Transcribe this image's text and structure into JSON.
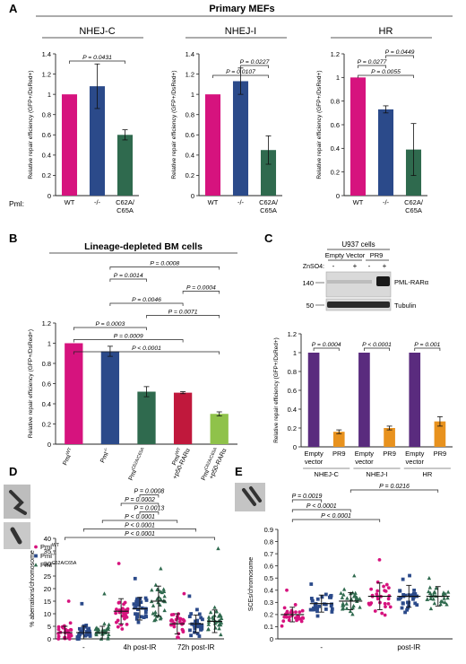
{
  "colors": {
    "magenta": "#d6137e",
    "navy": "#2b4a8a",
    "green": "#2f6a4e",
    "crimson": "#c0183c",
    "lightgreen": "#8fc24a",
    "purple": "#5a2b7e",
    "orange": "#e8921e",
    "axis": "#222222"
  },
  "panel_a": {
    "letter": "A",
    "title": "Primary MEFs",
    "pml_label": "Pml:",
    "ylabel": "Relative repair efficiency (GFP+/DsRed+)"
  },
  "panel_b": {
    "letter": "B",
    "title": "Lineage-depleted BM cells",
    "ylabel": "Relative repair efficiency (GFP+/DsRed+)"
  },
  "panel_c": {
    "letter": "C",
    "blot_title": "U937 cells",
    "group_empty": "Empty Vector",
    "group_pr9": "PR9",
    "znso4_label": "ZnSO4:",
    "lane_signs": [
      "-",
      "+",
      "-",
      "+"
    ],
    "mw_markers": [
      "140",
      "50"
    ],
    "band_pml": "PML-RARα",
    "band_tubulin": "Tubulin",
    "ylabel": "Relative repair efficiency (GFP+/DsRed+)"
  },
  "panel_d": {
    "letter": "D",
    "ylabel": "% aberrations/chromosome"
  },
  "panel_e": {
    "letter": "E",
    "ylabel": "SCEs/chromosome"
  },
  "chart_data": [
    {
      "id": "A1",
      "type": "bar",
      "subtitle": "NHEJ-C",
      "categories": [
        "WT",
        "-/-",
        "C62A/\nC65A"
      ],
      "values": [
        1.0,
        1.08,
        0.6
      ],
      "errors": [
        0,
        0.22,
        0.05
      ],
      "colors": [
        "magenta",
        "navy",
        "green"
      ],
      "ylim": [
        0,
        1.4
      ],
      "yticks": [
        "0",
        "0.2",
        "0.4",
        "0.6",
        "0.8",
        "1",
        "1.2",
        "1.4"
      ],
      "brackets": [
        {
          "from": 0,
          "to": 2,
          "label": "P = 0.0431"
        }
      ]
    },
    {
      "id": "A2",
      "type": "bar",
      "subtitle": "NHEJ-I",
      "categories": [
        "WT",
        "-/-",
        "C62A/\nC65A"
      ],
      "values": [
        1.0,
        1.13,
        0.45
      ],
      "errors": [
        0,
        0.13,
        0.14
      ],
      "colors": [
        "magenta",
        "navy",
        "green"
      ],
      "ylim": [
        0,
        1.4
      ],
      "yticks": [
        "0",
        "0.2",
        "0.4",
        "0.6",
        "0.8",
        "1",
        "1.2",
        "1.4"
      ],
      "brackets": [
        {
          "from": 0,
          "to": 2,
          "label": "P = 0.0107"
        },
        {
          "from": 1,
          "to": 2,
          "label": "P = 0.0227"
        }
      ]
    },
    {
      "id": "A3",
      "type": "bar",
      "subtitle": "HR",
      "categories": [
        "WT",
        "-/-",
        "C62A/\nC65A"
      ],
      "values": [
        1.0,
        0.73,
        0.39
      ],
      "errors": [
        0,
        0.03,
        0.22
      ],
      "colors": [
        "magenta",
        "navy",
        "green"
      ],
      "ylim": [
        0,
        1.2
      ],
      "yticks": [
        "0",
        "0.2",
        "0.4",
        "0.6",
        "0.8",
        "1",
        "1.2"
      ],
      "brackets": [
        {
          "from": 0,
          "to": 2,
          "label": "P = 0.0055"
        },
        {
          "from": 0,
          "to": 1,
          "label": "P = 0.0277"
        },
        {
          "from": 1,
          "to": 2,
          "label": "P = 0.0449"
        }
      ]
    },
    {
      "id": "B",
      "type": "bar",
      "categories": [
        "PmlWT",
        "Pml-/-",
        "PmlC62A/C65A",
        "PmlWT\n+p50-RARα",
        "PmlC62A/C65A\n+p50-RARα"
      ],
      "values": [
        1.0,
        0.92,
        0.52,
        0.51,
        0.3
      ],
      "errors": [
        0,
        0.05,
        0.05,
        0.01,
        0.02
      ],
      "colors": [
        "magenta",
        "navy",
        "green",
        "crimson",
        "lightgreen"
      ],
      "ylim": [
        0,
        1.2
      ],
      "yticks": [
        "0",
        "0.2",
        "0.4",
        "0.6",
        "0.8",
        "1",
        "1.2"
      ],
      "brackets": [
        {
          "from": 0,
          "to": 4,
          "label": "P < 0.0001"
        },
        {
          "from": 0,
          "to": 3,
          "label": "P = 0.0009"
        },
        {
          "from": 0,
          "to": 2,
          "label": "P = 0.0003"
        },
        {
          "from": 2,
          "to": 4,
          "label": "P = 0.0071"
        },
        {
          "from": 1,
          "to": 3,
          "label": "P = 0.0046"
        },
        {
          "from": 3,
          "to": 4,
          "label": "P = 0.0004"
        },
        {
          "from": 1,
          "to": 2,
          "label": "P = 0.0014"
        },
        {
          "from": 1,
          "to": 4,
          "label": "P = 0.0008"
        }
      ]
    },
    {
      "id": "C",
      "type": "bar",
      "categories": [
        "Empty\nvector",
        "PR9",
        "Empty\nvector",
        "PR9",
        "Empty\nvector",
        "PR9"
      ],
      "groups": [
        "NHEJ-C",
        "NHEJ-I",
        "HR"
      ],
      "values": [
        1.0,
        0.16,
        1.0,
        0.2,
        1.0,
        0.27
      ],
      "errors": [
        0,
        0.02,
        0,
        0.02,
        0,
        0.05
      ],
      "colors": [
        "purple",
        "orange",
        "purple",
        "orange",
        "purple",
        "orange"
      ],
      "ylim": [
        0,
        1.2
      ],
      "yticks": [
        "0",
        "0.2",
        "0.4",
        "0.6",
        "0.8",
        "1",
        "1.2"
      ],
      "brackets": [
        {
          "from": 0,
          "to": 1,
          "label": "P = 0.0004"
        },
        {
          "from": 2,
          "to": 3,
          "label": "P < 0.0001"
        },
        {
          "from": 4,
          "to": 5,
          "label": "P = 0.001"
        }
      ]
    },
    {
      "id": "D",
      "type": "scatter",
      "groups": [
        "-",
        "4h post-IR",
        "72h post-IR"
      ],
      "series": [
        {
          "name": "PmlWT",
          "color": "magenta",
          "marker": "circle",
          "mean": [
            2.5,
            11,
            6
          ],
          "sd": [
            2.5,
            5,
            4
          ],
          "max": [
            15,
            30,
            18
          ]
        },
        {
          "name": "Pml-/-",
          "color": "navy",
          "marker": "square",
          "mean": [
            2.5,
            12,
            6
          ],
          "sd": [
            2.5,
            4.5,
            3.5
          ],
          "max": [
            14,
            24,
            17
          ]
        },
        {
          "name": "PmlC62A/C65A",
          "color": "green",
          "marker": "triangle",
          "mean": [
            2.5,
            15,
            7
          ],
          "sd": [
            2.5,
            6,
            4.5
          ],
          "max": [
            18,
            28,
            36
          ]
        }
      ],
      "ylim": [
        0,
        40
      ],
      "yticks": [
        "0",
        "5",
        "10",
        "15",
        "20",
        "25",
        "30",
        "35",
        "40"
      ],
      "brackets": [
        {
          "from": 0,
          "to": 8,
          "label": "P < 0.0001"
        },
        {
          "from": 1,
          "to": 7,
          "label": "P < 0.0001"
        },
        {
          "from": 2,
          "to": 6,
          "label": "P < 0.0001"
        },
        {
          "from": 4,
          "to": 5,
          "label": "P = 0.0013"
        },
        {
          "from": 3,
          "to": 5,
          "label": "P = 0.0002"
        },
        {
          "from": 4,
          "to": 5,
          "label": "P = 0.0008"
        }
      ]
    },
    {
      "id": "E",
      "type": "scatter",
      "groups": [
        "-",
        "post-IR"
      ],
      "series": [
        {
          "color": "magenta",
          "marker": "circle",
          "mean": [
            0.2,
            0.35
          ],
          "sd": [
            0.06,
            0.11
          ],
          "max": [
            0.4,
            0.65
          ]
        },
        {
          "color": "navy",
          "marker": "square",
          "mean": [
            0.29,
            0.35
          ],
          "sd": [
            0.07,
            0.09
          ],
          "max": [
            0.45,
            0.52
          ]
        },
        {
          "color": "green",
          "marker": "triangle",
          "mean": [
            0.31,
            0.35
          ],
          "sd": [
            0.07,
            0.08
          ],
          "max": [
            0.52,
            0.5
          ]
        }
      ],
      "ylim": [
        0,
        0.9
      ],
      "yticks": [
        "0",
        "0.1",
        "0.2",
        "0.3",
        "0.4",
        "0.5",
        "0.6",
        "0.7",
        "0.8",
        "0.9"
      ],
      "brackets": [
        {
          "from": 0,
          "to": 3,
          "label": "P < 0.0001"
        },
        {
          "from": 0,
          "to": 2,
          "label": "P < 0.0001"
        },
        {
          "from": 0,
          "to": 1,
          "label": "P = 0.0019"
        },
        {
          "from": 2,
          "to": 5,
          "label": "P = 0.0216"
        }
      ]
    }
  ]
}
